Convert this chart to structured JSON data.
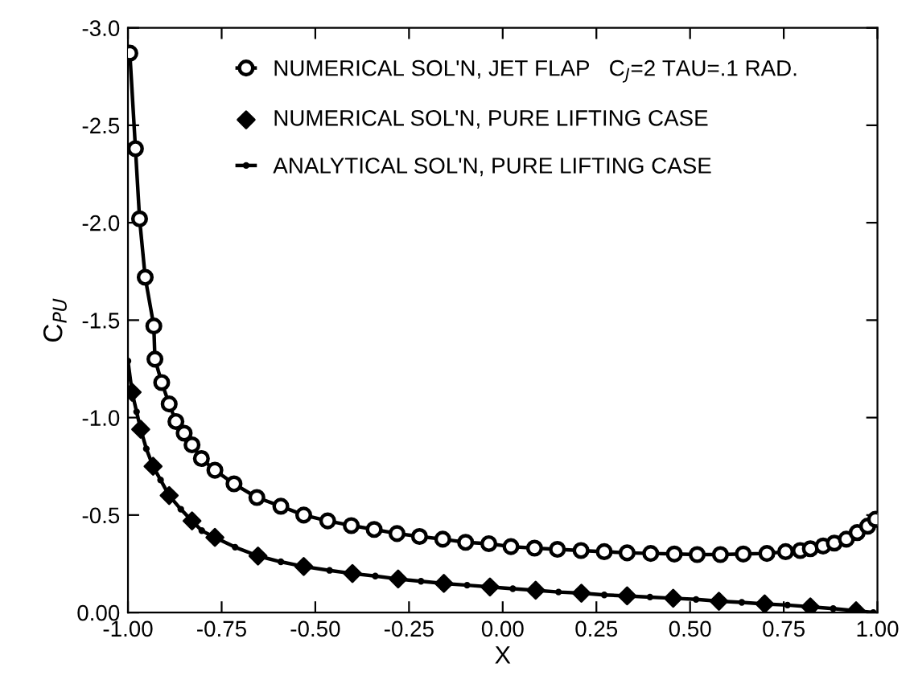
{
  "chart_data": {
    "type": "line",
    "xlabel": "X",
    "ylabel": "C$_{PU}$",
    "xlim": [
      -1.0,
      1.0
    ],
    "ylim": [
      0.0,
      -3.0
    ],
    "xticks": [
      {
        "value": -1.0,
        "label": "-1.00"
      },
      {
        "value": -0.75,
        "label": "-0.75"
      },
      {
        "value": -0.5,
        "label": "-0.50"
      },
      {
        "value": -0.25,
        "label": "-0.25"
      },
      {
        "value": 0,
        "label": "0.00"
      },
      {
        "value": 0.25,
        "label": "0.25"
      },
      {
        "value": 0.5,
        "label": "0.50"
      },
      {
        "value": 0.75,
        "label": "0.75"
      },
      {
        "value": 1.0,
        "label": "1.00"
      }
    ],
    "yticks": [
      {
        "value": 0,
        "label": "0.00"
      },
      -0.5,
      {
        "value": -1,
        "label": "-1.0"
      },
      -1.5,
      {
        "value": -2,
        "label": "-2.0"
      },
      -2.5,
      {
        "value": -3,
        "label": "-3.0"
      }
    ],
    "grid": false,
    "legend": "top",
    "series": [
      {
        "name": "NUMERICAL SOL'N, JET FLAP   C$_{J}$=2 TAU=.1 RAD.",
        "color": "#000000",
        "marker": "circle",
        "x": [
          -0.995,
          -0.98,
          -0.969,
          -0.954,
          -0.931,
          -0.928,
          -0.91,
          -0.89,
          -0.872,
          -0.85,
          -0.829,
          -0.804,
          -0.768,
          -0.717,
          -0.656,
          -0.592,
          -0.531,
          -0.467,
          -0.404,
          -0.343,
          -0.282,
          -0.222,
          -0.16,
          -0.099,
          -0.037,
          0.022,
          0.085,
          0.146,
          0.209,
          0.271,
          0.332,
          0.395,
          0.458,
          0.519,
          0.581,
          0.642,
          0.705,
          0.755,
          0.794,
          0.821,
          0.855,
          0.885,
          0.917,
          0.946,
          0.974,
          0.995
        ],
        "values": [
          -2.87,
          -2.38,
          -2.02,
          -1.72,
          -1.47,
          -1.3,
          -1.18,
          -1.07,
          -0.98,
          -0.92,
          -0.86,
          -0.79,
          -0.73,
          -0.66,
          -0.59,
          -0.545,
          -0.5,
          -0.47,
          -0.446,
          -0.426,
          -0.405,
          -0.39,
          -0.376,
          -0.36,
          -0.353,
          -0.338,
          -0.33,
          -0.324,
          -0.318,
          -0.312,
          -0.306,
          -0.303,
          -0.3,
          -0.297,
          -0.297,
          -0.3,
          -0.303,
          -0.312,
          -0.318,
          -0.327,
          -0.341,
          -0.356,
          -0.376,
          -0.41,
          -0.443,
          -0.478
        ]
      },
      {
        "name": "NUMERICAL SOL'N, PURE LIFTING CASE",
        "color": "#000000",
        "marker": "diamond",
        "type": "scatter",
        "x": [
          -0.989,
          -0.966,
          -0.933,
          -0.89,
          -0.829,
          -0.768,
          -0.653,
          -0.531,
          -0.401,
          -0.279,
          -0.157,
          -0.034,
          0.088,
          0.21,
          0.332,
          0.455,
          0.577,
          0.699,
          0.821,
          0.943
        ],
        "values": [
          -1.13,
          -0.94,
          -0.75,
          -0.6,
          -0.47,
          -0.385,
          -0.29,
          -0.236,
          -0.2,
          -0.172,
          -0.149,
          -0.131,
          -0.114,
          -0.099,
          -0.085,
          -0.073,
          -0.058,
          -0.044,
          -0.029,
          -0.009
        ]
      },
      {
        "name": "ANALYTICAL SOL'N, PURE LIFTING CASE",
        "color": "#000000",
        "marker": "circle",
        "line_style": "solid",
        "x": [
          -1.0,
          -0.989,
          -0.977,
          -0.966,
          -0.951,
          -0.933,
          -0.913,
          -0.89,
          -0.859,
          -0.829,
          -0.803,
          -0.768,
          -0.714,
          -0.653,
          -0.592,
          -0.531,
          -0.462,
          -0.401,
          -0.34,
          -0.279,
          -0.218,
          -0.157,
          -0.095,
          -0.034,
          0.027,
          0.088,
          0.149,
          0.21,
          0.271,
          0.332,
          0.393,
          0.455,
          0.516,
          0.577,
          0.638,
          0.699,
          0.76,
          0.821,
          0.882,
          0.943,
          0.989
        ],
        "values": [
          -1.29,
          -1.13,
          -1.03,
          -0.94,
          -0.84,
          -0.75,
          -0.68,
          -0.6,
          -0.53,
          -0.47,
          -0.42,
          -0.385,
          -0.335,
          -0.29,
          -0.26,
          -0.236,
          -0.216,
          -0.2,
          -0.187,
          -0.172,
          -0.16,
          -0.149,
          -0.14,
          -0.131,
          -0.122,
          -0.114,
          -0.105,
          -0.099,
          -0.09,
          -0.085,
          -0.079,
          -0.073,
          -0.067,
          -0.058,
          -0.052,
          -0.044,
          -0.038,
          -0.029,
          -0.02,
          -0.009,
          0.0
        ]
      }
    ]
  }
}
